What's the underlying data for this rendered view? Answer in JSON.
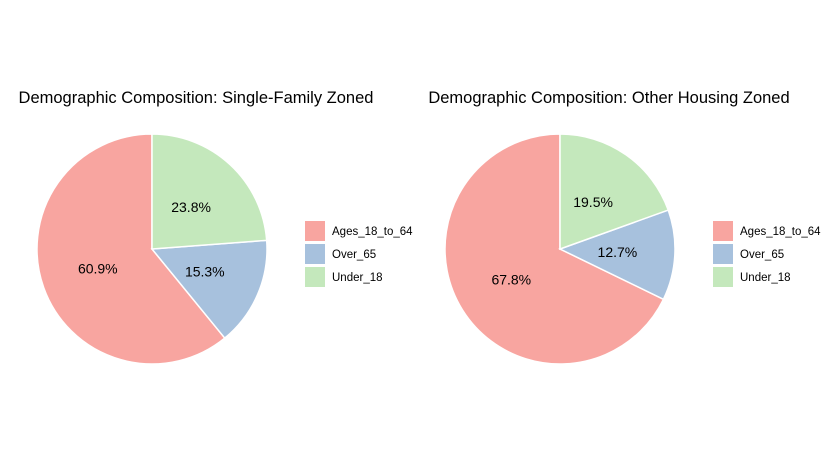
{
  "chart_data": [
    {
      "type": "pie",
      "title": "Demographic Composition: Single-Family Zoned",
      "categories": [
        "Ages_18_to_64",
        "Over_65",
        "Under_18"
      ],
      "values": [
        60.9,
        15.3,
        23.8
      ],
      "labels": [
        "60.9%",
        "15.3%",
        "23.8%"
      ],
      "colors": [
        "#F8A5A0",
        "#A7C1DD",
        "#C4E8BC"
      ],
      "legend": "right"
    },
    {
      "type": "pie",
      "title": "Demographic Composition: Other Housing Zoned",
      "categories": [
        "Ages_18_to_64",
        "Over_65",
        "Under_18"
      ],
      "values": [
        67.8,
        12.7,
        19.5
      ],
      "labels": [
        "67.8%",
        "12.7%",
        "19.5%"
      ],
      "colors": [
        "#F8A5A0",
        "#A7C1DD",
        "#C4E8BC"
      ],
      "legend": "right"
    }
  ]
}
